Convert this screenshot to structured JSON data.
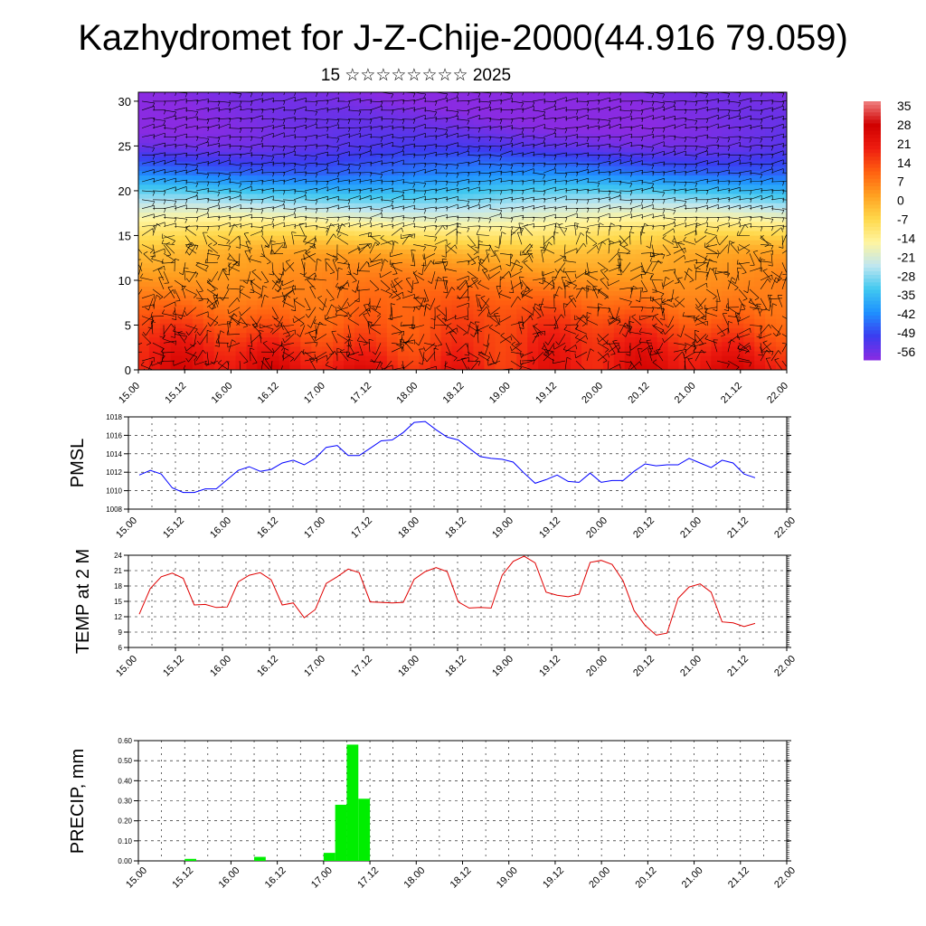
{
  "title": "Kazhydromet for J-Z-Chije-2000(44.916 79.059)",
  "subtitle": "15 ☆☆☆☆☆☆☆☆ 2025",
  "time_labels": [
    "15.00",
    "15.12",
    "16.00",
    "16.12",
    "17.00",
    "17.12",
    "18.00",
    "18.12",
    "19.00",
    "19.12",
    "20.00",
    "20.12",
    "21.00",
    "21.12",
    "22.00"
  ],
  "chart_data": [
    {
      "type": "heatmap",
      "title": "",
      "xlabel": "",
      "ylabel": "",
      "x_ticks": [
        "15.00",
        "15.12",
        "16.00",
        "16.12",
        "17.00",
        "17.12",
        "18.00",
        "18.12",
        "19.00",
        "19.12",
        "20.00",
        "20.12",
        "21.00",
        "21.12",
        "22.00"
      ],
      "y_ticks": [
        0,
        5,
        10,
        15,
        20,
        25,
        30
      ],
      "ylim": [
        0,
        31
      ],
      "colorbar_labels": [
        "35",
        "28",
        "21",
        "14",
        "7",
        "0",
        "-7",
        "-14",
        "-21",
        "-28",
        "-35",
        "-42",
        "-49",
        "-56"
      ],
      "colorbar_range": [
        -60,
        38
      ],
      "colormap": [
        "#8a2be2",
        "#3b3cf0",
        "#1e90ff",
        "#40c8f0",
        "#bfe6f0",
        "#fff5a0",
        "#ffd84a",
        "#ffa020",
        "#ff6010",
        "#ee1c10",
        "#d00000",
        "#f08080"
      ],
      "wind_barbs": true,
      "temperature_profile": {
        "heights": [
          0,
          5,
          10,
          13,
          15,
          17,
          20,
          22,
          25,
          27,
          30,
          31
        ],
        "values": [
          22,
          14,
          6,
          0,
          -8,
          -18,
          -34,
          -45,
          -55,
          -58,
          -60,
          -60
        ]
      },
      "temperature_diurnal_amplitude": 4
    },
    {
      "type": "line",
      "ylabel": "PMSL",
      "ylim": [
        1008,
        1018
      ],
      "y_ticks": [
        1008,
        1010,
        1012,
        1014,
        1016,
        1018
      ],
      "line_color": "#0000ff",
      "series": [
        {
          "values": [
            1011.7,
            1012.2,
            1011.8,
            1010.3,
            1009.8,
            1009.8,
            1010.2,
            1010.2,
            1011.2,
            1012.2,
            1012.6,
            1012.1,
            1012.3,
            1013.0,
            1013.3,
            1012.8,
            1013.5,
            1014.7,
            1014.9,
            1013.8,
            1013.8,
            1014.6,
            1015.4,
            1015.5,
            1016.3,
            1017.4,
            1017.5,
            1016.6,
            1015.8,
            1015.5,
            1014.6,
            1013.7,
            1013.5,
            1013.4,
            1013.1,
            1011.9,
            1010.8,
            1011.2,
            1011.7,
            1011.0,
            1010.9,
            1011.9,
            1010.9,
            1011.1,
            1011.1,
            1012.1,
            1012.9,
            1012.7,
            1012.8,
            1012.8,
            1013.5,
            1013.0,
            1012.5,
            1013.3,
            1013.0,
            1011.8,
            1011.4
          ]
        }
      ]
    },
    {
      "type": "line",
      "ylabel": "TEMP at 2 M",
      "ylim": [
        6,
        24
      ],
      "y_ticks": [
        6,
        9,
        12,
        15,
        18,
        21,
        24
      ],
      "line_color": "#e00000",
      "series": [
        {
          "values": [
            12.5,
            17.5,
            19.8,
            20.5,
            19.5,
            14.3,
            14.4,
            13.8,
            13.9,
            18.8,
            20.1,
            20.6,
            19.2,
            14.3,
            14.7,
            11.8,
            13.4,
            18.5,
            19.8,
            21.3,
            20.6,
            14.9,
            14.8,
            14.7,
            14.8,
            19.3,
            20.8,
            21.6,
            20.8,
            14.9,
            13.7,
            13.8,
            13.7,
            20.1,
            22.8,
            23.8,
            22.5,
            16.8,
            16.2,
            15.9,
            16.4,
            22.6,
            23.0,
            22.2,
            19.0,
            13.2,
            10.3,
            8.4,
            8.8,
            15.6,
            17.8,
            18.4,
            16.8,
            11.0,
            10.8,
            10.1,
            10.7
          ]
        }
      ]
    },
    {
      "type": "bar",
      "ylabel": "PRECIP, mm",
      "ylim": [
        0,
        0.6
      ],
      "y_ticks": [
        "0.00",
        "0.10",
        "0.20",
        "0.30",
        "0.40",
        "0.50",
        "0.60"
      ],
      "bar_color": "#00ee00",
      "series": [
        {
          "values": [
            0,
            0,
            0,
            0,
            0.01,
            0,
            0,
            0,
            0,
            0,
            0.02,
            0,
            0,
            0,
            0,
            0,
            0.04,
            0.28,
            0.58,
            0.31,
            0,
            0,
            0,
            0,
            0,
            0,
            0,
            0,
            0,
            0,
            0,
            0,
            0,
            0,
            0,
            0,
            0,
            0,
            0,
            0,
            0,
            0,
            0,
            0,
            0,
            0,
            0,
            0,
            0,
            0,
            0,
            0,
            0,
            0,
            0,
            0
          ]
        }
      ]
    }
  ]
}
